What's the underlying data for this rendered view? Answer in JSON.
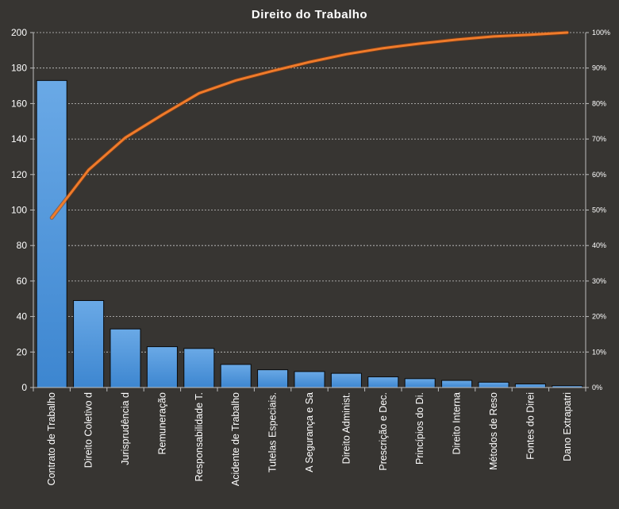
{
  "chart_data": {
    "type": "bar",
    "title": "Direito  do Trabalho",
    "xlabel": "",
    "ylabel": "",
    "ylim": [
      0,
      200
    ],
    "yticks": [
      "0",
      "20",
      "40",
      "60",
      "80",
      "100",
      "120",
      "140",
      "160",
      "180",
      "200"
    ],
    "y2lim": [
      0,
      100
    ],
    "y2ticks": [
      "0%",
      "10%",
      "20%",
      "30%",
      "40%",
      "50%",
      "60%",
      "70%",
      "80%",
      "90%",
      "100%"
    ],
    "grid": true,
    "legend": "none",
    "categories": [
      "Contrato de Trabalho",
      "Direito Coletivo d",
      "Jurisprudência d",
      "Remuneração",
      "Responsabilidade T.",
      "Acidente de Trabalho",
      "Tutelas Especiais.",
      "A Segurança e Sa",
      "Direito Administ.",
      "Prescrição e Dec.",
      "Princípios do Di.",
      "Direito Interna",
      "Métodos de Reso",
      "Fontes do Direi",
      "Dano Extrapatri"
    ],
    "series": [
      {
        "type": "bar",
        "axis": "left",
        "color": "#4a8fd6",
        "values": [
          173,
          49,
          33,
          23,
          22,
          13,
          10,
          9,
          8,
          6,
          5,
          4,
          3,
          2,
          1
        ]
      },
      {
        "type": "line",
        "axis": "right",
        "unit": "%",
        "color": "#f07b2a",
        "values": [
          47.8,
          61.3,
          70.4,
          76.8,
          82.9,
          86.5,
          89.2,
          91.7,
          93.9,
          95.6,
          96.9,
          98.0,
          98.9,
          99.4,
          100.0
        ]
      }
    ]
  }
}
